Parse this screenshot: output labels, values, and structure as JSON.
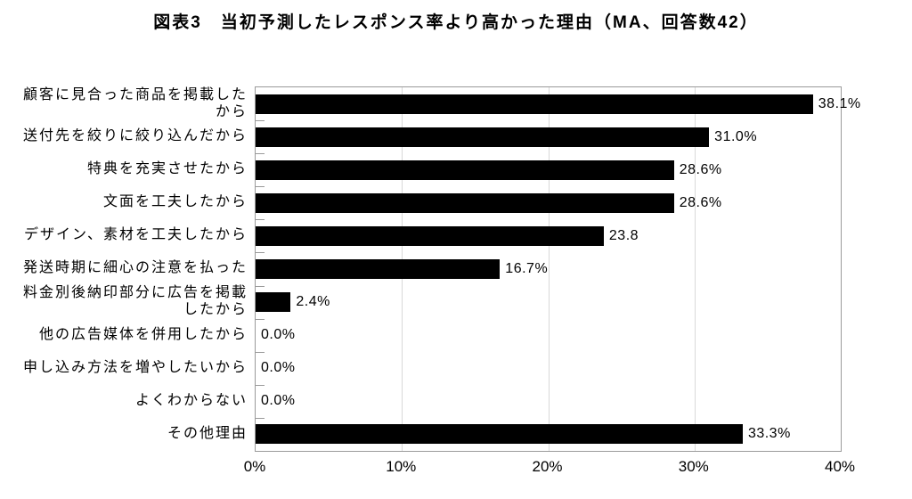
{
  "title": "図表3　当初予測したレスポンス率より高かった理由（MA、回答数42）",
  "chart_data": {
    "type": "bar",
    "orientation": "horizontal",
    "title": "図表3　当初予測したレスポンス率より高かった理由（MA、回答数42）",
    "categories": [
      "顧客に見合った商品を掲載した\nから",
      "送付先を絞りに絞り込んだから",
      "特典を充実させたから",
      "文面を工夫したから",
      "デザイン、素材を工夫したから",
      "発送時期に細心の注意を払った",
      "料金別後納印部分に広告を掲載\nしたから",
      "他の広告媒体を併用したから",
      "申し込み方法を増やしたいから",
      "よくわからない",
      "その他理由"
    ],
    "values": [
      38.1,
      31.0,
      28.6,
      28.6,
      23.8,
      16.7,
      2.4,
      0.0,
      0.0,
      0.0,
      33.3
    ],
    "value_labels": [
      "38.1%",
      "31.0%",
      "28.6%",
      "28.6%",
      "23.8",
      "16.7%",
      "2.4%",
      "0.0%",
      "0.0%",
      "0.0%",
      "33.3%"
    ],
    "xlabel": "",
    "ylabel": "",
    "xlim": [
      0,
      40
    ],
    "x_ticks": [
      "0%",
      "10%",
      "20%",
      "30%",
      "40%"
    ],
    "x_tick_values": [
      0,
      10,
      20,
      30,
      40
    ],
    "grid": true,
    "legend": "none",
    "bar_color": "#000000",
    "grid_color": "#d9d9d9",
    "border_color": "#9a9a9a",
    "text_color": "#000000",
    "background_color": "#ffffff"
  }
}
